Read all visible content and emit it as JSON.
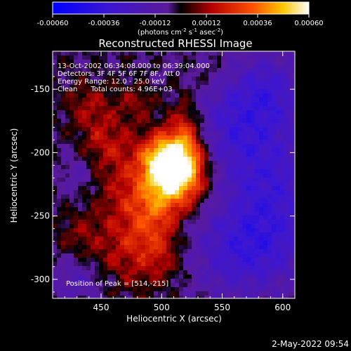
{
  "chart_data": {
    "type": "heatmap",
    "title": "Reconstructed RHESSI Image",
    "xlabel": "Heliocentric X (arcsec)",
    "ylabel": "Heliocentric Y (arcsec)",
    "xlim": [
      410,
      610
    ],
    "ylim": [
      -315,
      -120
    ],
    "x_ticks": [
      450,
      500,
      550,
      600
    ],
    "y_ticks": [
      -150,
      -200,
      -250,
      -300
    ],
    "colorbar": {
      "min": -0.0006,
      "max": 0.0006,
      "ticks": [
        "-0.00060",
        "-0.00036",
        "-0.00012",
        "0.00012",
        "0.00036",
        "0.00060"
      ],
      "units_prefix": "(photons cm",
      "units_sup1": "-2",
      "units_mid": " s",
      "units_sup2": "-1",
      "units_mid2": " asec",
      "units_sup3": "-2",
      "units_suffix": ")"
    },
    "annotations": [
      "13-Oct-2002 06:34:08.000 to 06:39:04.000",
      "Detectors: 3F 4F 5F 6F 7F 8F, Att 0",
      "Energy Range: 12.0 - 25.0 keV",
      "Clean      Total counts: 4.96E+03"
    ],
    "peak_label": "Position of Peak = [514,-215]",
    "peak": [
      514,
      -215
    ],
    "timestamp": "2-May-2022 09:54"
  }
}
